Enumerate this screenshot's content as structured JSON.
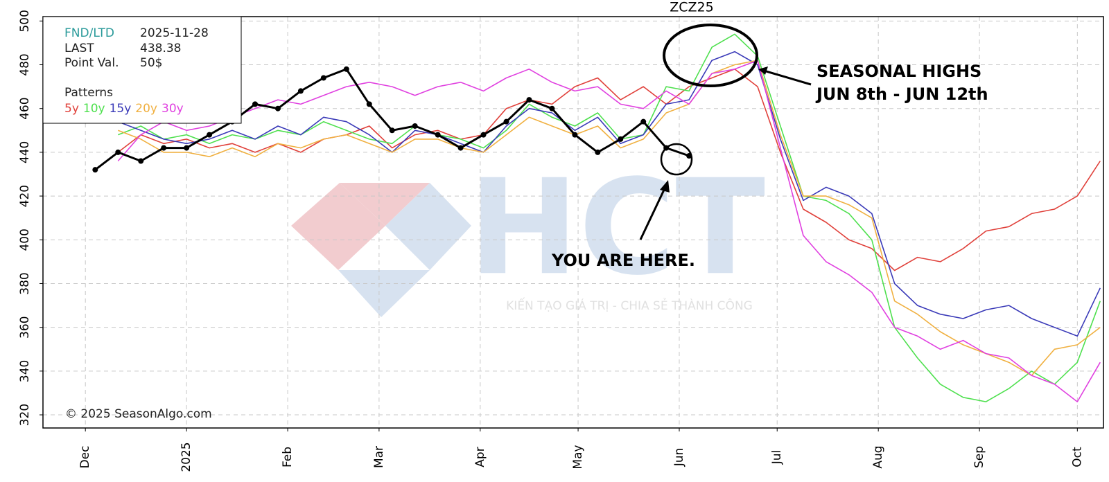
{
  "chart_data": {
    "type": "line",
    "title": "ZCZ25",
    "info": {
      "rows": [
        [
          "FND/LTD",
          "2025-11-28"
        ],
        [
          "LAST",
          "438.38"
        ],
        [
          "Point Val.",
          "50$"
        ]
      ],
      "patterns_label": "Patterns"
    },
    "annotations": {
      "highs_1": "SEASONAL HIGHS",
      "highs_2": "JUN 8th - JUN 12th",
      "here": "YOU ARE HERE.",
      "copyright": "© 2025 SeasonAlgo.com"
    },
    "watermark": {
      "logo": "HCT",
      "slogan": "KIẾN TẠO GIÁ TRỊ - CHIA SẺ THÀNH CÔNG"
    },
    "xlim": [
      -13,
      312
    ],
    "xticks": [
      {
        "value": 0,
        "label": "Dec"
      },
      {
        "value": 31,
        "label": "2025"
      },
      {
        "value": 62,
        "label": "Feb"
      },
      {
        "value": 90,
        "label": "Mar"
      },
      {
        "value": 121,
        "label": "Apr"
      },
      {
        "value": 151,
        "label": "May"
      },
      {
        "value": 182,
        "label": "Jun"
      },
      {
        "value": 212,
        "label": "Jul"
      },
      {
        "value": 243,
        "label": "Aug"
      },
      {
        "value": 274,
        "label": "Sep"
      },
      {
        "value": 304,
        "label": "Oct"
      }
    ],
    "ylim": [
      314,
      502
    ],
    "yticks": [
      320,
      340,
      360,
      380,
      400,
      420,
      440,
      460,
      480,
      500
    ],
    "grid": true,
    "x": [
      3,
      10,
      17,
      24,
      31,
      38,
      45,
      52,
      59,
      66,
      73,
      80,
      87,
      94,
      101,
      108,
      115,
      122,
      129,
      136,
      143,
      150,
      157,
      164,
      171,
      178,
      185,
      192,
      199,
      206,
      213,
      220,
      227,
      234,
      241,
      248,
      255,
      262,
      269,
      276,
      283,
      290,
      297,
      304,
      311
    ],
    "series": [
      {
        "name": "5y",
        "color": "#e0403a",
        "values": [
          null,
          440,
          448,
          444,
          446,
          442,
          444,
          440,
          444,
          440,
          446,
          448,
          452,
          442,
          448,
          450,
          446,
          448,
          460,
          464,
          462,
          470,
          474,
          464,
          470,
          462,
          470,
          474,
          478,
          470,
          440,
          414,
          408,
          400,
          396,
          386,
          392,
          390,
          396,
          404,
          406,
          412,
          414,
          420,
          436
        ]
      },
      {
        "name": "10y",
        "color": "#4ee04e",
        "values": [
          null,
          448,
          452,
          446,
          448,
          444,
          448,
          446,
          450,
          448,
          454,
          450,
          446,
          444,
          452,
          448,
          446,
          442,
          450,
          462,
          456,
          452,
          458,
          446,
          448,
          470,
          468,
          488,
          494,
          484,
          452,
          420,
          418,
          412,
          400,
          360,
          346,
          334,
          328,
          326,
          332,
          340,
          334,
          344,
          372
        ]
      },
      {
        "name": "15y",
        "color": "#3a3ab8",
        "values": [
          null,
          454,
          450,
          446,
          444,
          446,
          450,
          446,
          452,
          448,
          456,
          454,
          448,
          440,
          450,
          448,
          444,
          440,
          452,
          460,
          458,
          450,
          456,
          444,
          448,
          462,
          464,
          482,
          486,
          480,
          446,
          418,
          424,
          420,
          412,
          380,
          370,
          366,
          364,
          368,
          370,
          364,
          360,
          356,
          378
        ]
      },
      {
        "name": "20y",
        "color": "#f0b040",
        "values": [
          null,
          450,
          446,
          440,
          440,
          438,
          442,
          438,
          444,
          442,
          446,
          448,
          444,
          440,
          446,
          446,
          442,
          440,
          448,
          456,
          452,
          448,
          452,
          442,
          446,
          458,
          462,
          476,
          480,
          482,
          448,
          420,
          420,
          416,
          410,
          372,
          366,
          358,
          352,
          348,
          344,
          338,
          350,
          352,
          360
        ]
      },
      {
        "name": "30y",
        "color": "#e040e0",
        "values": [
          null,
          436,
          448,
          454,
          450,
          452,
          456,
          460,
          464,
          462,
          466,
          470,
          472,
          470,
          466,
          470,
          472,
          468,
          474,
          478,
          472,
          468,
          470,
          462,
          460,
          468,
          462,
          476,
          478,
          482,
          442,
          402,
          390,
          384,
          376,
          360,
          356,
          350,
          354,
          348,
          346,
          338,
          334,
          326,
          344
        ]
      },
      {
        "color": "#000000",
        "markers": true,
        "values": [
          432,
          440,
          436,
          442,
          442,
          448,
          454,
          462,
          460,
          468,
          474,
          478,
          462,
          450,
          452,
          448,
          442,
          448,
          454,
          464,
          460,
          448,
          440,
          446,
          454,
          442,
          438.38,
          null,
          null,
          null,
          null,
          null,
          null,
          null,
          null,
          null,
          null,
          null,
          null,
          null,
          null,
          null,
          null,
          null,
          null
        ]
      }
    ]
  }
}
